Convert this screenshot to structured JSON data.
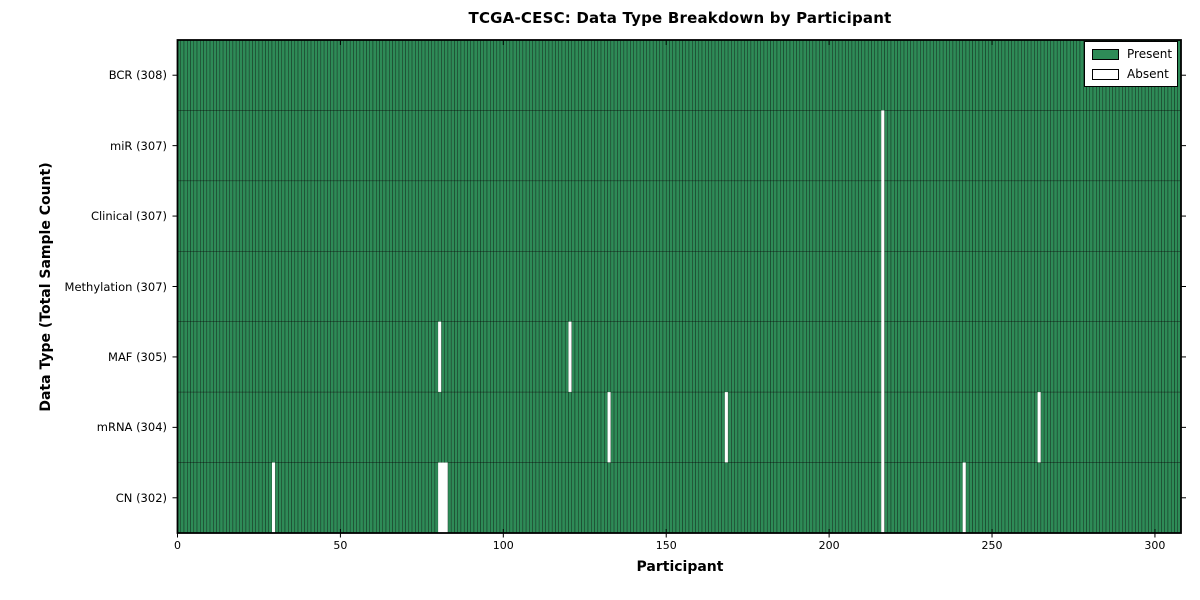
{
  "figure": {
    "title": "TCGA-CESC: Data Type Breakdown by Participant",
    "x_axis_label": "Participant",
    "y_axis_label": "Data Type (Total Sample Count)"
  },
  "colors": {
    "present": "#2e8b57",
    "absent": "#ffffff",
    "bar_edge": "#000000",
    "frame": "#000000",
    "background": "#ffffff",
    "text": "#000000"
  },
  "chart_data": {
    "type": "heatmap",
    "title": "TCGA-CESC: Data Type Breakdown by Participant",
    "xlabel": "Participant",
    "ylabel": "Data Type (Total Sample Count)",
    "x_ticks": [
      0,
      50,
      100,
      150,
      200,
      250,
      300
    ],
    "xlim": [
      0,
      308
    ],
    "n_participants": 308,
    "grid": false,
    "legend_position": "upper right",
    "legend": [
      {
        "label": "Present",
        "color": "#2e8b57"
      },
      {
        "label": "Absent",
        "color": "#ffffff"
      }
    ],
    "rows": [
      {
        "label": "BCR (308)",
        "data_type": "BCR",
        "total": 308,
        "absent_participants": []
      },
      {
        "label": "miR (307)",
        "data_type": "miR",
        "total": 307,
        "absent_participants": [
          216
        ]
      },
      {
        "label": "Clinical (307)",
        "data_type": "Clinical",
        "total": 307,
        "absent_participants": [
          216
        ]
      },
      {
        "label": "Methylation (307)",
        "data_type": "Methylation",
        "total": 307,
        "absent_participants": [
          216
        ]
      },
      {
        "label": "MAF (305)",
        "data_type": "MAF",
        "total": 305,
        "absent_participants": [
          80,
          120,
          216
        ]
      },
      {
        "label": "mRNA (304)",
        "data_type": "mRNA",
        "total": 304,
        "absent_participants": [
          132,
          168,
          216,
          264
        ]
      },
      {
        "label": "CN (302)",
        "data_type": "CN",
        "total": 302,
        "absent_participants": [
          29,
          80,
          81,
          82,
          216,
          241
        ]
      }
    ]
  }
}
